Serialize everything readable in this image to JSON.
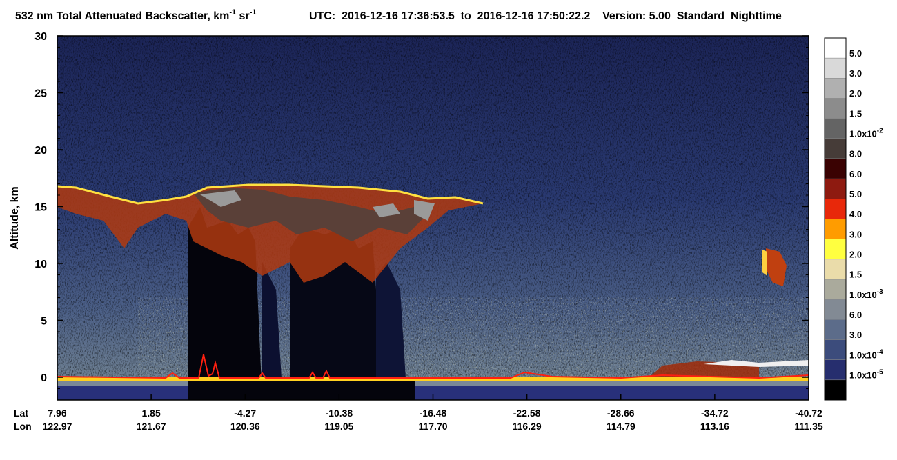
{
  "chart_data": {
    "type": "heatmap",
    "title": {
      "text": "532 nm Total Attenuated Backscatter, km",
      "exp1": "-1",
      "unit2": " sr",
      "exp2": "-1"
    },
    "subtitle": "UTC:  2016-12-16 17:36:53.5  to  2016-12-16 17:50:22.2    Version: 5.00  Standard  Nighttime",
    "ylabel": "Altitude, km",
    "ylim": [
      -2,
      30
    ],
    "yticks": [
      0,
      5,
      10,
      15,
      20,
      25,
      30
    ],
    "x_rows": [
      {
        "name": "Lat",
        "labels": [
          "7.96",
          "1.85",
          "-4.27",
          "-10.38",
          "-16.48",
          "-22.58",
          "-28.66",
          "-34.72",
          "-40.72"
        ]
      },
      {
        "name": "Lon",
        "labels": [
          "122.97",
          "121.67",
          "120.36",
          "119.05",
          "117.70",
          "116.29",
          "114.79",
          "113.16",
          "111.35"
        ]
      }
    ],
    "colorbar": {
      "colors": [
        "#ffffff",
        "#d9d9d9",
        "#b0b0b0",
        "#8c8c8c",
        "#646464",
        "#463c38",
        "#3a0202",
        "#8e1a10",
        "#e8280a",
        "#ff9c00",
        "#ffff40",
        "#eadcaa",
        "#aaaa9c",
        "#828a94",
        "#5c6c8a",
        "#3c4c7c",
        "#262e6e",
        "#000000"
      ],
      "labels": [
        {
          "text": "5.0"
        },
        {
          "text": "3.0"
        },
        {
          "text": "2.0"
        },
        {
          "text": "1.5"
        },
        {
          "text": "1.0x10",
          "sup": "-2"
        },
        {
          "text": "8.0"
        },
        {
          "text": "6.0"
        },
        {
          "text": "5.0"
        },
        {
          "text": "4.0"
        },
        {
          "text": "3.0"
        },
        {
          "text": "2.0"
        },
        {
          "text": "1.5"
        },
        {
          "text": "1.0x10",
          "sup": "-3"
        },
        {
          "text": "6.0"
        },
        {
          "text": "3.0"
        },
        {
          "text": "1.0x10",
          "sup": "-4"
        },
        {
          "text": "1.0x10",
          "sup": "-5"
        }
      ]
    }
  }
}
